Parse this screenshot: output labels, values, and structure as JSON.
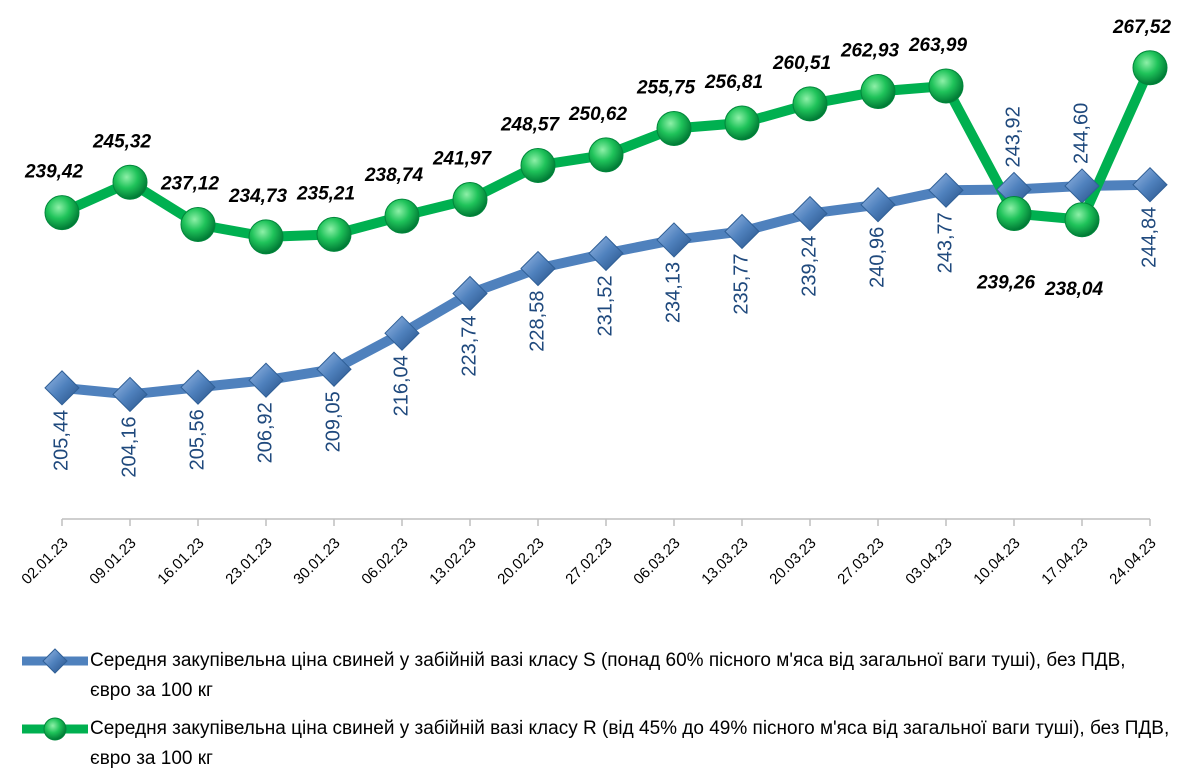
{
  "chart_data": {
    "type": "line",
    "categories": [
      "02.01.23",
      "09.01.23",
      "16.01.23",
      "23.01.23",
      "30.01.23",
      "06.02.23",
      "13.02.23",
      "20.02.23",
      "27.02.23",
      "06.03.23",
      "13.03.23",
      "20.03.23",
      "27.03.23",
      "03.04.23",
      "10.04.23",
      "17.04.23",
      "24.04.23"
    ],
    "ylim": [
      180,
      270
    ],
    "series": [
      {
        "name": "Середня закупівельна ціна свиней у забійній вазі класу S (понад 60% пісного м'яса від загальної ваги туші), без ПДВ, євро за 100 кг",
        "color": "#4f81bd",
        "marker": "diamond",
        "values": [
          205.44,
          204.16,
          205.56,
          206.92,
          209.05,
          216.04,
          223.74,
          228.58,
          231.52,
          234.13,
          235.77,
          239.24,
          240.96,
          243.77,
          243.92,
          244.6,
          244.84
        ],
        "value_labels": [
          "205,44",
          "204,16",
          "205,56",
          "206,92",
          "209,05",
          "216,04",
          "223,74",
          "228,58",
          "231,52",
          "234,13",
          "235,77",
          "239,24",
          "240,96",
          "243,77",
          "243,92",
          "244,60",
          "244,84"
        ]
      },
      {
        "name": "Середня закупівельна ціна свиней у забійній вазі класу R (від 45% до 49% пісного м'яса від загальної ваги туші), без ПДВ, євро за 100 кг",
        "color": "#00b050",
        "marker": "circle",
        "values": [
          239.42,
          245.32,
          237.12,
          234.73,
          235.21,
          238.74,
          241.97,
          248.57,
          250.62,
          255.75,
          256.81,
          260.51,
          262.93,
          263.99,
          239.26,
          238.04,
          267.52
        ],
        "value_labels": [
          "239,42",
          "245,32",
          "237,12",
          "234,73",
          "235,21",
          "238,74",
          "241,97",
          "248,57",
          "250,62",
          "255,75",
          "256,81",
          "260,51",
          "262,93",
          "263,99",
          "239,26",
          "238,04",
          "267,52"
        ]
      }
    ]
  }
}
